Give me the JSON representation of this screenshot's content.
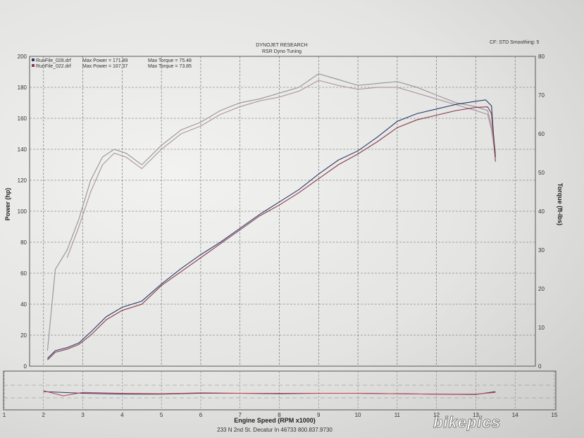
{
  "header": {
    "title": "DYNOJET RESEARCH",
    "subtitle": "RSR Dyno Tuning",
    "settings": "CF: STD  Smoothing: 5"
  },
  "legend": [
    {
      "file": "RunFile_028.drf",
      "max_power": "Max Power = 171.89",
      "max_torque": "Max Torque = 75.48",
      "color": "#2a3a6a"
    },
    {
      "file": "RunFile_022.drf",
      "max_power": "Max Power = 167.37",
      "max_torque": "Max Torque = 73.85",
      "color": "#8a3a4a"
    }
  ],
  "footer": "233 N 2nd St. Decatur In 46733 800.837.9730",
  "watermark": "bikepics",
  "chart_data": {
    "type": "line",
    "xlabel": "Engine Speed (RPM x1000)",
    "ylabel_left": "Power (hp)",
    "ylabel_right": "Torque (ft-lbs)",
    "xlim": [
      1,
      15
    ],
    "ylim_left": [
      0,
      200
    ],
    "ylim_right": [
      0,
      80
    ],
    "x_ticks": [
      "1",
      "2",
      "3",
      "4",
      "5",
      "6",
      "7",
      "8",
      "9",
      "10",
      "11",
      "12",
      "13",
      "14",
      "15"
    ],
    "y_left_ticks": [
      "0",
      "20",
      "40",
      "60",
      "80",
      "100",
      "120",
      "140",
      "160",
      "180",
      "200"
    ],
    "y_right_ticks": [
      "0",
      "10",
      "20",
      "30",
      "40",
      "50",
      "60",
      "70",
      "80"
    ],
    "grid": true,
    "power_series": [
      {
        "name": "RunFile_028.drf",
        "color": "#2a3a6a",
        "points": [
          [
            2.1,
            5
          ],
          [
            2.3,
            10
          ],
          [
            2.6,
            12
          ],
          [
            2.9,
            15
          ],
          [
            3.2,
            22
          ],
          [
            3.6,
            32
          ],
          [
            4.0,
            38
          ],
          [
            4.5,
            42
          ],
          [
            5.0,
            53
          ],
          [
            5.5,
            63
          ],
          [
            6.0,
            72
          ],
          [
            6.5,
            80
          ],
          [
            7.0,
            89
          ],
          [
            7.5,
            98
          ],
          [
            8.0,
            106
          ],
          [
            8.5,
            114
          ],
          [
            9.0,
            124
          ],
          [
            9.5,
            133
          ],
          [
            10.0,
            139
          ],
          [
            10.5,
            148
          ],
          [
            11.0,
            158
          ],
          [
            11.5,
            163
          ],
          [
            12.0,
            166
          ],
          [
            12.5,
            169
          ],
          [
            13.0,
            171
          ],
          [
            13.25,
            171.9
          ],
          [
            13.4,
            168
          ],
          [
            13.45,
            150
          ],
          [
            13.5,
            135
          ]
        ]
      },
      {
        "name": "RunFile_022.drf",
        "color": "#8a3a4a",
        "points": [
          [
            2.1,
            4
          ],
          [
            2.3,
            9
          ],
          [
            2.6,
            11
          ],
          [
            2.9,
            14
          ],
          [
            3.2,
            20
          ],
          [
            3.6,
            30
          ],
          [
            4.0,
            36
          ],
          [
            4.5,
            40
          ],
          [
            5.0,
            52
          ],
          [
            5.5,
            61
          ],
          [
            6.0,
            70
          ],
          [
            6.5,
            79
          ],
          [
            7.0,
            88
          ],
          [
            7.5,
            97
          ],
          [
            8.0,
            104
          ],
          [
            8.5,
            112
          ],
          [
            9.0,
            121
          ],
          [
            9.5,
            130
          ],
          [
            10.0,
            137
          ],
          [
            10.5,
            145
          ],
          [
            11.0,
            154
          ],
          [
            11.5,
            159
          ],
          [
            12.0,
            162
          ],
          [
            12.5,
            165
          ],
          [
            13.0,
            167
          ],
          [
            13.3,
            167.4
          ],
          [
            13.4,
            163
          ],
          [
            13.45,
            148
          ],
          [
            13.5,
            132
          ]
        ]
      }
    ],
    "torque_series": [
      {
        "name": "RunFile_028.drf",
        "color": "#9a9aa2",
        "points": [
          [
            2.1,
            4
          ],
          [
            2.3,
            25
          ],
          [
            2.6,
            30
          ],
          [
            2.9,
            38
          ],
          [
            3.2,
            48
          ],
          [
            3.5,
            54
          ],
          [
            3.8,
            56
          ],
          [
            4.1,
            55
          ],
          [
            4.5,
            52
          ],
          [
            5.0,
            57
          ],
          [
            5.5,
            61
          ],
          [
            6.0,
            63
          ],
          [
            6.5,
            66
          ],
          [
            7.0,
            68
          ],
          [
            7.5,
            69
          ],
          [
            8.0,
            70.5
          ],
          [
            8.5,
            72
          ],
          [
            9.0,
            75.5
          ],
          [
            9.5,
            74
          ],
          [
            10.0,
            72.5
          ],
          [
            10.5,
            73
          ],
          [
            11.0,
            73.5
          ],
          [
            11.5,
            72
          ],
          [
            12.0,
            70
          ],
          [
            12.5,
            68
          ],
          [
            13.0,
            67
          ],
          [
            13.3,
            66
          ],
          [
            13.4,
            62
          ],
          [
            13.5,
            55
          ]
        ]
      },
      {
        "name": "RunFile_022.drf",
        "color": "#b09a9e",
        "points": [
          [
            2.6,
            28
          ],
          [
            2.9,
            36
          ],
          [
            3.2,
            45
          ],
          [
            3.5,
            52
          ],
          [
            3.8,
            55
          ],
          [
            4.1,
            54
          ],
          [
            4.5,
            51
          ],
          [
            5.0,
            56
          ],
          [
            5.5,
            60
          ],
          [
            6.0,
            62
          ],
          [
            6.5,
            65
          ],
          [
            7.0,
            67
          ],
          [
            7.5,
            68.5
          ],
          [
            8.0,
            69.5
          ],
          [
            8.5,
            71
          ],
          [
            9.0,
            73.8
          ],
          [
            9.5,
            72.5
          ],
          [
            10.0,
            71.5
          ],
          [
            10.5,
            72
          ],
          [
            11.0,
            72
          ],
          [
            11.5,
            70.5
          ],
          [
            12.0,
            69
          ],
          [
            12.5,
            67.5
          ],
          [
            13.0,
            66
          ],
          [
            13.3,
            65
          ],
          [
            13.4,
            61
          ],
          [
            13.5,
            54
          ]
        ]
      }
    ],
    "bottom_panel": {
      "series": [
        {
          "name": "RunFile_028.drf",
          "color": "#2a3a6a",
          "points": [
            [
              2.0,
              0.2
            ],
            [
              3.0,
              0.0
            ],
            [
              4.0,
              -0.1
            ],
            [
              5.0,
              -0.1
            ],
            [
              6.0,
              0.0
            ],
            [
              7.0,
              0.0
            ],
            [
              8.0,
              -0.05
            ],
            [
              9.0,
              0.0
            ],
            [
              10.0,
              0.0
            ],
            [
              11.0,
              -0.05
            ],
            [
              12.0,
              -0.1
            ],
            [
              13.0,
              -0.15
            ],
            [
              13.5,
              0.2
            ]
          ]
        },
        {
          "name": "RunFile_022.drf",
          "color": "#c04050",
          "points": [
            [
              2.0,
              0.3
            ],
            [
              2.5,
              -0.3
            ],
            [
              3.0,
              0.1
            ],
            [
              4.0,
              0.0
            ],
            [
              5.0,
              -0.05
            ],
            [
              6.0,
              0.05
            ],
            [
              7.0,
              0.0
            ],
            [
              8.0,
              0.0
            ],
            [
              9.0,
              0.0
            ],
            [
              10.0,
              0.0
            ],
            [
              11.0,
              -0.05
            ],
            [
              12.0,
              -0.1
            ],
            [
              13.0,
              -0.1
            ],
            [
              13.5,
              0.1
            ]
          ]
        }
      ]
    }
  }
}
